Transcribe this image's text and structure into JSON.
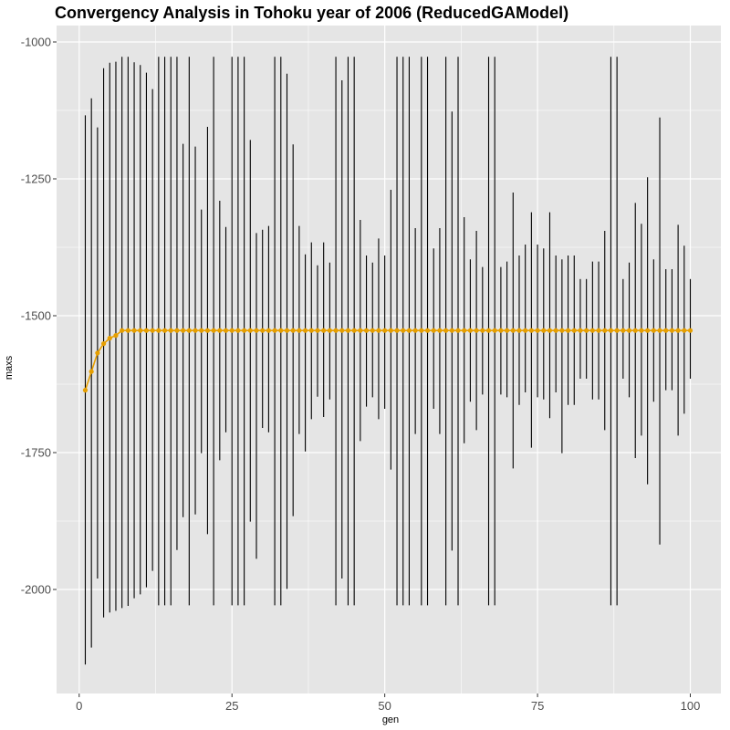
{
  "chart_data": {
    "type": "line",
    "title": "Convergency Analysis in  Tohoku year of 2006 (ReducedGAModel)",
    "xlabel": "gen",
    "ylabel": "maxs",
    "xlim": [
      -3.7,
      105
    ],
    "ylim": [
      -2190,
      -970
    ],
    "x_ticks": [
      0,
      25,
      50,
      75,
      100
    ],
    "x_tick_labels": [
      "0",
      "25",
      "50",
      "75",
      "100"
    ],
    "y_ticks": [
      -2000,
      -1750,
      -1500,
      -1250,
      -1000
    ],
    "y_tick_labels": [
      "-2000",
      "-1750",
      "-1500",
      "-1250",
      "-1000"
    ],
    "grid": true,
    "legend": "none",
    "colors": {
      "panel": "#e5e5e5",
      "grid": "#ffffff",
      "errorbar": "#000000",
      "line": "#e69f00"
    },
    "mean_line": {
      "x": [
        1,
        2,
        3,
        4,
        5,
        6,
        7,
        8,
        9,
        10,
        11,
        12,
        13,
        14,
        15,
        16,
        17,
        18,
        19,
        20,
        21,
        22,
        23,
        24,
        25,
        26,
        27,
        28,
        29,
        30,
        31,
        32,
        33,
        34,
        35,
        36,
        37,
        38,
        39,
        40,
        41,
        42,
        43,
        44,
        45,
        46,
        47,
        48,
        49,
        50,
        51,
        52,
        53,
        54,
        55,
        56,
        57,
        58,
        59,
        60,
        61,
        62,
        63,
        64,
        65,
        66,
        67,
        68,
        69,
        70,
        71,
        72,
        73,
        74,
        75,
        76,
        77,
        78,
        79,
        80,
        81,
        82,
        83,
        84,
        85,
        86,
        87,
        88,
        89,
        90,
        91,
        92,
        93,
        94,
        95,
        96,
        97,
        98,
        99,
        100
      ],
      "y": [
        -1636,
        -1602,
        -1568,
        -1551,
        -1541,
        -1536,
        -1527,
        -1527,
        -1527,
        -1527,
        -1527,
        -1527,
        -1527,
        -1527,
        -1527,
        -1527,
        -1527,
        -1527,
        -1527,
        -1527,
        -1527,
        -1527,
        -1527,
        -1527,
        -1527,
        -1527,
        -1527,
        -1527,
        -1527,
        -1527,
        -1527,
        -1527,
        -1527,
        -1527,
        -1527,
        -1527,
        -1527,
        -1527,
        -1527,
        -1527,
        -1527,
        -1527,
        -1527,
        -1527,
        -1527,
        -1527,
        -1527,
        -1527,
        -1527,
        -1527,
        -1527,
        -1527,
        -1527,
        -1527,
        -1527,
        -1527,
        -1527,
        -1527,
        -1527,
        -1527,
        -1527,
        -1527,
        -1527,
        -1527,
        -1527,
        -1527,
        -1527,
        -1527,
        -1527,
        -1527,
        -1527,
        -1527,
        -1527,
        -1527,
        -1527,
        -1527,
        -1527,
        -1527,
        -1527,
        -1527,
        -1527,
        -1527,
        -1527,
        -1527,
        -1527,
        -1527,
        -1527,
        -1527,
        -1527,
        -1527,
        -1527,
        -1527,
        -1527,
        -1527,
        -1527,
        -1527,
        -1527,
        -1527,
        -1527,
        -1527
      ]
    },
    "error_bars": {
      "x": [
        1,
        2,
        3,
        4,
        5,
        6,
        7,
        8,
        9,
        10,
        11,
        12,
        13,
        14,
        15,
        16,
        17,
        18,
        19,
        20,
        21,
        22,
        23,
        24,
        25,
        26,
        27,
        28,
        29,
        30,
        31,
        32,
        33,
        34,
        35,
        36,
        37,
        38,
        39,
        40,
        41,
        42,
        43,
        44,
        45,
        46,
        47,
        48,
        49,
        50,
        51,
        52,
        53,
        54,
        55,
        56,
        57,
        58,
        59,
        60,
        61,
        62,
        63,
        64,
        65,
        66,
        67,
        68,
        69,
        70,
        71,
        72,
        73,
        74,
        75,
        76,
        77,
        78,
        79,
        80,
        81,
        82,
        83,
        84,
        85,
        86,
        87,
        88,
        89,
        90,
        91,
        92,
        93,
        94,
        95,
        96,
        97,
        98,
        99,
        100
      ],
      "ymin": [
        -2137,
        -2106,
        -1980,
        -2051,
        -2042,
        -2039,
        -2034,
        -2030,
        -2016,
        -2009,
        -1996,
        -1966,
        -2029,
        -2029,
        -2029,
        -1928,
        -1868,
        -2029,
        -1863,
        -1751,
        -1899,
        -2029,
        -1764,
        -1713,
        -2029,
        -2029,
        -2029,
        -1876,
        -1944,
        -1705,
        -1713,
        -2029,
        -2029,
        -1999,
        -1866,
        -1716,
        -1748,
        -1689,
        -1648,
        -1685,
        -1653,
        -2029,
        -1980,
        -2029,
        -2029,
        -1729,
        -1666,
        -1649,
        -1689,
        -1670,
        -1781,
        -2029,
        -2029,
        -2029,
        -1716,
        -2029,
        -2029,
        -1670,
        -1716,
        -2029,
        -1929,
        -2029,
        -1733,
        -1657,
        -1709,
        -1644,
        -2029,
        -2029,
        -1644,
        -1649,
        -1779,
        -1663,
        -1640,
        -1741,
        -1649,
        -1653,
        -1687,
        -1640,
        -1751,
        -1663,
        -1663,
        -1615,
        -1615,
        -1653,
        -1653,
        -1709,
        -2029,
        -2029,
        -1615,
        -1649,
        -1760,
        -1719,
        -1808,
        -1657,
        -1918,
        -1636,
        -1636,
        -1719,
        -1679,
        -1615
      ],
      "ymax": [
        -1134,
        -1103,
        -1156,
        -1048,
        -1038,
        -1036,
        -1027,
        -1027,
        -1037,
        -1042,
        -1056,
        -1086,
        -1027,
        -1027,
        -1027,
        -1027,
        -1186,
        -1027,
        -1191,
        -1306,
        -1155,
        -1027,
        -1290,
        -1338,
        -1027,
        -1027,
        -1027,
        -1179,
        -1349,
        -1343,
        -1336,
        -1027,
        -1027,
        -1058,
        -1187,
        -1336,
        -1388,
        -1366,
        -1408,
        -1366,
        -1403,
        -1027,
        -1070,
        -1027,
        -1027,
        -1325,
        -1390,
        -1403,
        -1359,
        -1390,
        -1270,
        -1027,
        -1027,
        -1027,
        -1340,
        -1027,
        -1027,
        -1377,
        -1340,
        -1027,
        -1127,
        -1027,
        -1320,
        -1397,
        -1345,
        -1411,
        -1027,
        -1027,
        -1411,
        -1401,
        -1275,
        -1390,
        -1370,
        -1311,
        -1370,
        -1377,
        -1311,
        -1390,
        -1397,
        -1390,
        -1390,
        -1433,
        -1433,
        -1401,
        -1401,
        -1345,
        -1027,
        -1027,
        -1433,
        -1403,
        -1294,
        -1332,
        -1247,
        -1397,
        -1138,
        -1415,
        -1415,
        -1334,
        -1372,
        -1433
      ]
    }
  }
}
